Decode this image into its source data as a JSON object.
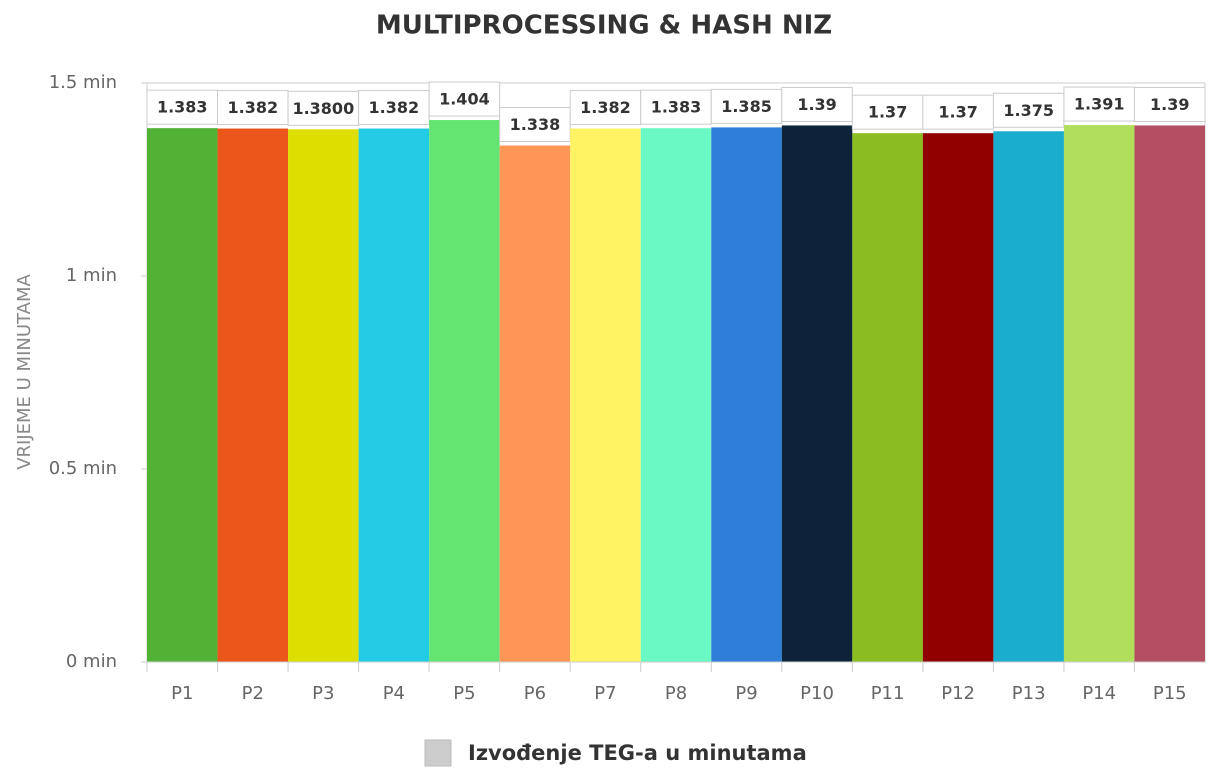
{
  "chart_data": {
    "type": "bar",
    "title": "MULTIPROCESSING & HASH NIZ",
    "y_label": "VRIJEME U MINUTAMA",
    "categories": [
      "P1",
      "P2",
      "P3",
      "P4",
      "P5",
      "P6",
      "P7",
      "P8",
      "P9",
      "P10",
      "P11",
      "P12",
      "P13",
      "P14",
      "P15"
    ],
    "series": [
      {
        "name": "Izvođenje TEG-a u minutama",
        "color": "#cccccc",
        "values": [
          1.383,
          1.382,
          1.38,
          1.382,
          1.404,
          1.338,
          1.382,
          1.383,
          1.385,
          1.39,
          1.37,
          1.37,
          1.375,
          1.391,
          1.39
        ],
        "value_labels": [
          "1.383",
          "1.382",
          "1.3800",
          "1.382",
          "1.404",
          "1.338",
          "1.382",
          "1.383",
          "1.385",
          "1.39",
          "1.37",
          "1.37",
          "1.375",
          "1.391",
          "1.39"
        ],
        "colors": [
          "#52b236",
          "#ec561b",
          "#dddf00",
          "#24cbe5",
          "#64e572",
          "#ff9655",
          "#fff263",
          "#6af9c4",
          "#2f7ed8",
          "#0d233a",
          "#8bbc21",
          "#910000",
          "#1aadce",
          "#b2df5b",
          "#b44e63"
        ]
      }
    ],
    "ylim": [
      0,
      1.5
    ],
    "yticks": [
      {
        "value": 0,
        "label": "0 min"
      },
      {
        "value": 0.5,
        "label": "0.5 min"
      },
      {
        "value": 1,
        "label": "1 min"
      },
      {
        "value": 1.5,
        "label": "1.5 min"
      }
    ]
  }
}
